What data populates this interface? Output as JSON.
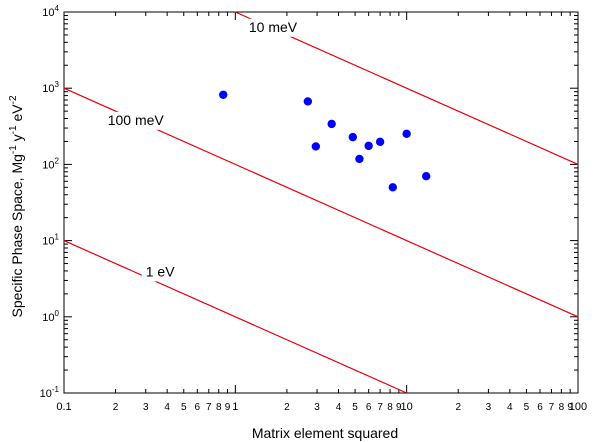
{
  "chart_data": {
    "type": "scatter",
    "title": "",
    "xlabel": "Matrix element squared",
    "ylabel_main": "Specific Phase Space, Mg",
    "ylabel_sup1": "-1",
    "ylabel_mid": " y",
    "ylabel_sup2": "-1",
    "ylabel_end": " eV",
    "ylabel_sup3": "-2",
    "xscale": "log",
    "yscale": "log",
    "xlim": [
      0.1,
      100
    ],
    "ylim": [
      0.1,
      10000
    ],
    "x_major_ticks": [
      {
        "value": 0.1,
        "label": "0.1"
      },
      {
        "value": 1,
        "label": "1"
      },
      {
        "value": 10,
        "label": "10"
      },
      {
        "value": 100,
        "label": "100"
      }
    ],
    "x_minor_labels": [
      "2",
      "3",
      "4",
      "5",
      "6",
      "7",
      "8",
      "9"
    ],
    "y_major_ticks": [
      {
        "value": 0.1,
        "base": "10",
        "exp": "-1"
      },
      {
        "value": 1,
        "base": "10",
        "exp": "0"
      },
      {
        "value": 10,
        "base": "10",
        "exp": "1"
      },
      {
        "value": 100,
        "base": "10",
        "exp": "2"
      },
      {
        "value": 1000,
        "base": "10",
        "exp": "3"
      },
      {
        "value": 10000,
        "base": "10",
        "exp": "4"
      }
    ],
    "lines": [
      {
        "name": "10 meV",
        "label": "10 meV",
        "x": [
          1.0,
          100
        ],
        "y": [
          10000,
          100
        ],
        "color": "#e8000b",
        "label_x": 1.2,
        "label_y": 5500
      },
      {
        "name": "100 meV",
        "label": "100 meV",
        "x": [
          0.1,
          100
        ],
        "y": [
          1000,
          1
        ],
        "color": "#e8000b",
        "label_x": 0.18,
        "label_y": 330
      },
      {
        "name": "1 eV",
        "label": "1 eV",
        "x": [
          0.1,
          10
        ],
        "y": [
          10,
          0.1
        ],
        "color": "#e8000b",
        "label_x": 0.3,
        "label_y": 3.4
      }
    ],
    "series": [
      {
        "name": "data points",
        "color": "#0000ff",
        "points": [
          {
            "x": 0.85,
            "y": 820
          },
          {
            "x": 2.65,
            "y": 670
          },
          {
            "x": 2.95,
            "y": 172
          },
          {
            "x": 3.65,
            "y": 340
          },
          {
            "x": 4.85,
            "y": 228
          },
          {
            "x": 5.3,
            "y": 118
          },
          {
            "x": 6.0,
            "y": 175
          },
          {
            "x": 7.0,
            "y": 198
          },
          {
            "x": 8.3,
            "y": 50
          },
          {
            "x": 10.0,
            "y": 252
          },
          {
            "x": 13.0,
            "y": 70
          }
        ]
      }
    ]
  }
}
